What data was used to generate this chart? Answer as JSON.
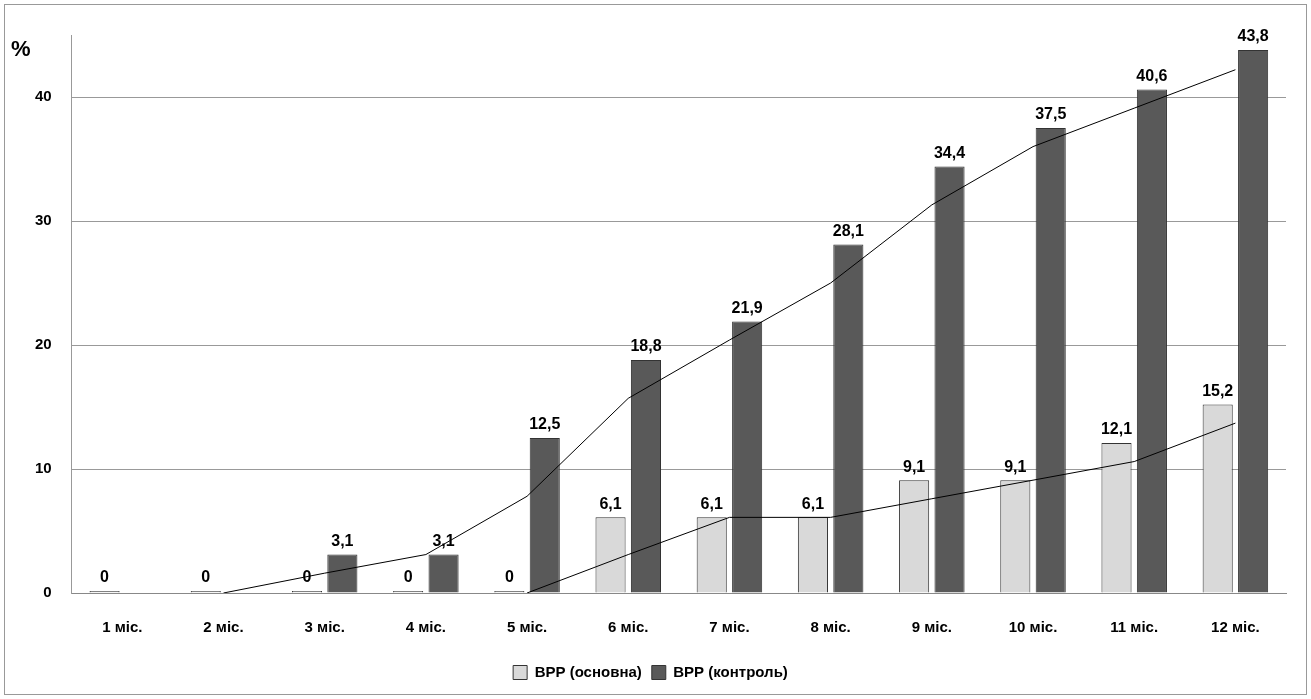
{
  "chart_data": {
    "type": "bar",
    "ylabel": "%",
    "categories": [
      "1 міс.",
      "2 міс.",
      "3 міс.",
      "4 міс.",
      "5 міс.",
      "6 міс.",
      "7 міс.",
      "8 міс.",
      "9 міс.",
      "10 міс.",
      "11 міс.",
      "12 міс."
    ],
    "series": [
      {
        "name": "ВРР (основна)",
        "color": "#d9d9d9",
        "values": [
          0,
          0,
          0,
          0,
          0,
          6.1,
          6.1,
          6.1,
          9.1,
          9.1,
          12.1,
          15.2
        ],
        "value_labels": [
          "0",
          "0",
          "0",
          "0",
          "0",
          "6,1",
          "6,1",
          "6,1",
          "9,1",
          "9,1",
          "12,1",
          "15,2"
        ]
      },
      {
        "name": "ВРР (контроль)",
        "color": "#595959",
        "values": [
          0,
          0,
          3.1,
          3.1,
          12.5,
          18.8,
          21.9,
          28.1,
          34.4,
          37.5,
          40.6,
          43.8
        ],
        "value_labels": [
          null,
          null,
          "3,1",
          "3,1",
          "12,5",
          "18,8",
          "21,9",
          "28,1",
          "34,4",
          "37,5",
          "40,6",
          "43,8"
        ]
      },
      {
        "type": "line",
        "color": "#000000",
        "values": [
          null,
          null,
          null,
          null,
          0,
          3.1,
          6.1,
          6.1,
          7.6,
          9.1,
          10.6,
          13.7
        ]
      },
      {
        "type": "line",
        "color": "#000000",
        "values": [
          null,
          0,
          1.6,
          3.1,
          7.8,
          15.7,
          20.4,
          25,
          31.3,
          36,
          39.1,
          42.2
        ]
      }
    ],
    "ylim": [
      0,
      45
    ],
    "yticks": [
      0,
      10,
      20,
      30,
      40
    ],
    "grid": "y",
    "legend": "bottom"
  }
}
